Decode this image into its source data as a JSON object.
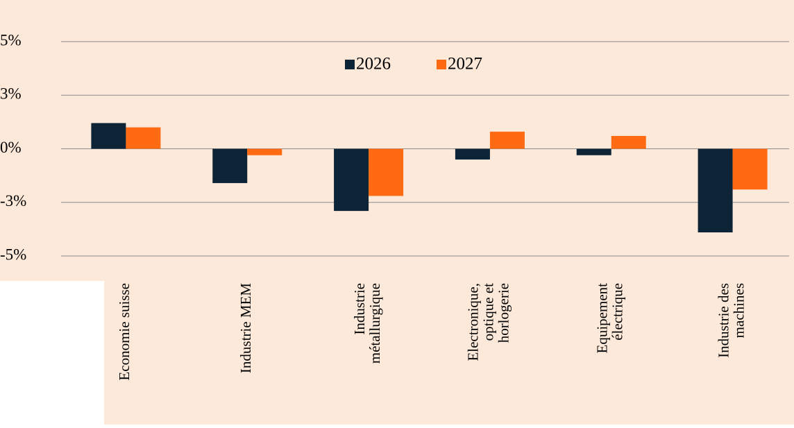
{
  "chart_data": {
    "type": "bar",
    "categories": [
      [
        "Economie suisse"
      ],
      [
        "Industrie MEM"
      ],
      [
        "Industrie",
        "métallurgique"
      ],
      [
        "Electronique,",
        "optique et",
        "horlogerie"
      ],
      [
        "Equipement",
        "électrique"
      ],
      [
        "Industrie des",
        "machines"
      ]
    ],
    "series": [
      {
        "name": "2026",
        "color": "#0d2436",
        "values": [
          1.2,
          -1.6,
          -2.9,
          -0.5,
          -0.3,
          -3.9
        ]
      },
      {
        "name": "2027",
        "color": "#ff6a13",
        "values": [
          1.0,
          -0.3,
          -2.2,
          0.8,
          0.6,
          -1.9
        ]
      }
    ],
    "ylim": [
      -5,
      5
    ],
    "yticks": [
      {
        "value": 5,
        "label": "5%"
      },
      {
        "value": 2.5,
        "label": "3%"
      },
      {
        "value": 0,
        "label": "0%"
      },
      {
        "value": -2.5,
        "label": "-3%"
      },
      {
        "value": -5,
        "label": "-5%"
      }
    ],
    "grid": true,
    "legend": "top"
  }
}
